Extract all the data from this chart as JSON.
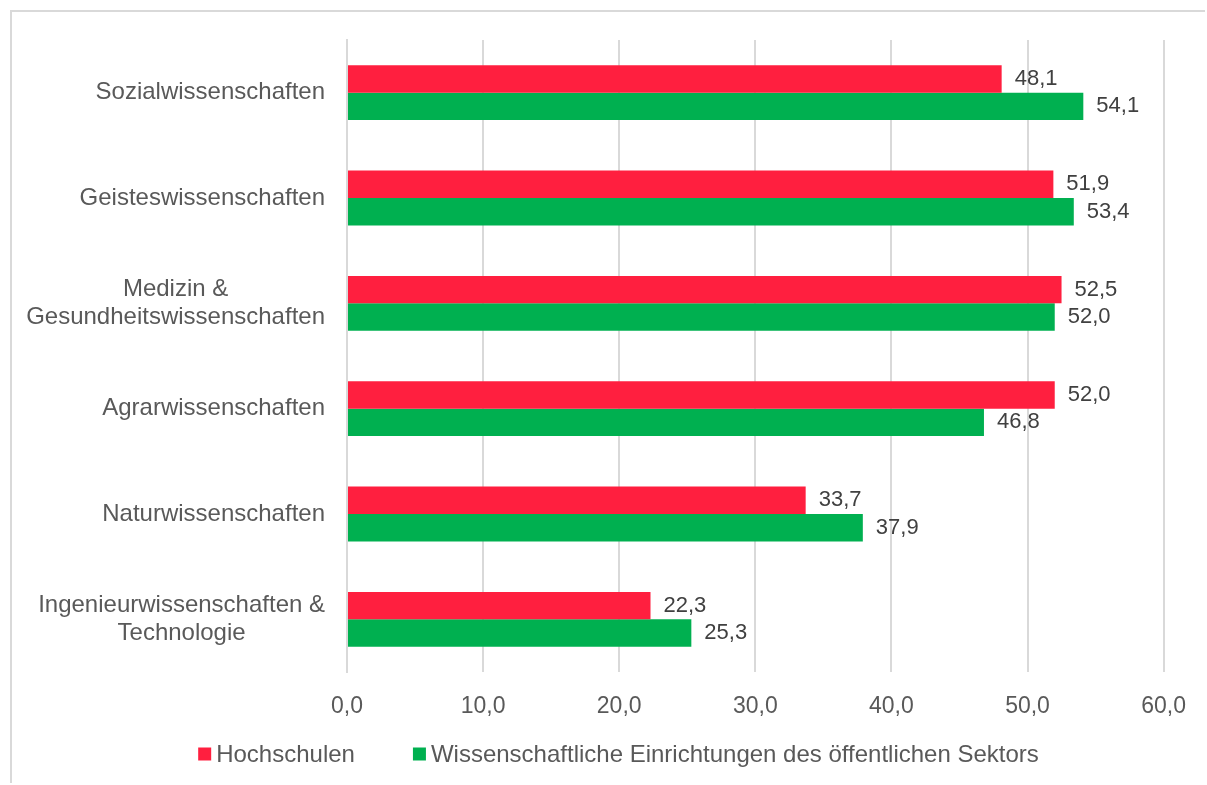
{
  "chart_data": {
    "type": "bar",
    "orientation": "horizontal",
    "categories": [
      "Sozialwissenschaften",
      "Geisteswissenschaften",
      "Medizin & Gesundheitswissenschaften",
      "Agrarwissenschaften",
      "Naturwissenschaften",
      "Ingenieurwissenschaften & Technologie"
    ],
    "series": [
      {
        "name": "Hochschulen",
        "color": "#ff1f3f",
        "values": [
          48.1,
          51.9,
          52.5,
          52.0,
          33.7,
          22.3
        ],
        "value_labels": [
          "48,1",
          "51,9",
          "52,5",
          "52,0",
          "33,7",
          "22,3"
        ]
      },
      {
        "name": "Wissenschaftliche Einrichtungen des öffentlichen Sektors",
        "color": "#00b050",
        "values": [
          54.1,
          53.4,
          52.0,
          46.8,
          37.9,
          25.3
        ],
        "value_labels": [
          "54,1",
          "53,4",
          "52,0",
          "46,8",
          "37,9",
          "25,3"
        ]
      }
    ],
    "xlim": [
      0,
      60
    ],
    "xticks": [
      {
        "value": 0,
        "label": "0,0"
      },
      {
        "value": 10,
        "label": "10,0"
      },
      {
        "value": 20,
        "label": "20,0"
      },
      {
        "value": 30,
        "label": "30,0"
      },
      {
        "value": 40,
        "label": "40,0"
      },
      {
        "value": 50,
        "label": "50,0"
      },
      {
        "value": 60,
        "label": "60,0"
      }
    ],
    "grid": "x",
    "legend": "bottom"
  }
}
